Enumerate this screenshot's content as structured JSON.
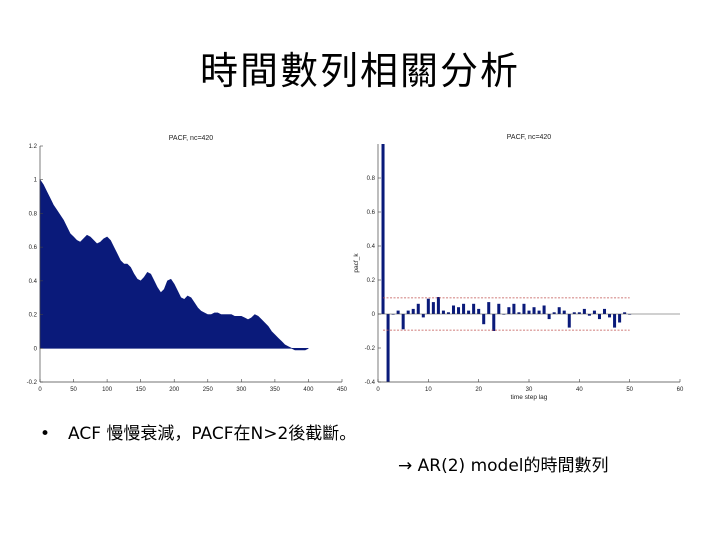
{
  "slide": {
    "title": "時間數列相關分析",
    "bullet_marker": "•",
    "bullet_text": "ACF 慢慢衰減，PACF在N>2後截斷。",
    "conclusion": "→ AR(2) model的時間數列"
  },
  "colors": {
    "fill": "#0a1a7a",
    "band": "#c0504d",
    "axis": "#444444"
  },
  "chart_data": [
    {
      "type": "area",
      "title": "PACF, nc=420",
      "xlim": [
        0,
        450
      ],
      "ylim": [
        -0.2,
        1.2
      ],
      "xticks": [
        0,
        50,
        100,
        150,
        200,
        250,
        300,
        350,
        400,
        450
      ],
      "yticks": [
        -0.2,
        0,
        0.2,
        0.4,
        0.6,
        0.8,
        1,
        1.2
      ],
      "x": [
        0,
        5,
        10,
        15,
        20,
        25,
        30,
        35,
        40,
        45,
        50,
        55,
        60,
        65,
        70,
        75,
        80,
        85,
        90,
        95,
        100,
        105,
        110,
        115,
        120,
        125,
        130,
        135,
        140,
        145,
        150,
        155,
        160,
        165,
        170,
        175,
        180,
        185,
        190,
        195,
        200,
        205,
        210,
        215,
        220,
        225,
        230,
        235,
        240,
        245,
        250,
        255,
        260,
        265,
        270,
        275,
        280,
        285,
        290,
        295,
        300,
        305,
        310,
        315,
        320,
        325,
        330,
        335,
        340,
        345,
        350,
        355,
        360,
        365,
        370,
        375,
        380,
        385,
        390,
        395,
        400
      ],
      "y": [
        1.0,
        0.97,
        0.93,
        0.89,
        0.85,
        0.82,
        0.79,
        0.76,
        0.72,
        0.68,
        0.66,
        0.64,
        0.63,
        0.65,
        0.67,
        0.66,
        0.64,
        0.62,
        0.63,
        0.65,
        0.66,
        0.64,
        0.6,
        0.56,
        0.52,
        0.5,
        0.5,
        0.48,
        0.44,
        0.41,
        0.4,
        0.42,
        0.45,
        0.44,
        0.4,
        0.36,
        0.33,
        0.35,
        0.4,
        0.41,
        0.38,
        0.34,
        0.3,
        0.29,
        0.31,
        0.3,
        0.27,
        0.24,
        0.22,
        0.21,
        0.2,
        0.2,
        0.21,
        0.21,
        0.2,
        0.2,
        0.2,
        0.2,
        0.19,
        0.19,
        0.19,
        0.18,
        0.17,
        0.18,
        0.2,
        0.19,
        0.17,
        0.15,
        0.13,
        0.1,
        0.08,
        0.06,
        0.04,
        0.02,
        0.01,
        0.0,
        -0.01,
        -0.01,
        -0.01,
        -0.01,
        0.0
      ]
    },
    {
      "type": "bar",
      "title": "PACF, nc=420",
      "xlabel": "time step lag",
      "ylabel": "pacf_k",
      "xlim": [
        0,
        60
      ],
      "ylim": [
        -0.4,
        1.0
      ],
      "xticks": [
        0,
        10,
        20,
        30,
        40,
        50,
        60
      ],
      "yticks": [
        -0.4,
        -0.2,
        0,
        0.2,
        0.4,
        0.6,
        0.8
      ],
      "confidence_band": [
        -0.095,
        0.095
      ],
      "x": [
        1,
        2,
        3,
        4,
        5,
        6,
        7,
        8,
        9,
        10,
        11,
        12,
        13,
        14,
        15,
        16,
        17,
        18,
        19,
        20,
        21,
        22,
        23,
        24,
        25,
        26,
        27,
        28,
        29,
        30,
        31,
        32,
        33,
        34,
        35,
        36,
        37,
        38,
        39,
        40,
        41,
        42,
        43,
        44,
        45,
        46,
        47,
        48,
        49,
        50
      ],
      "values": [
        1.0,
        -0.42,
        0.0,
        0.02,
        -0.09,
        0.02,
        0.03,
        0.06,
        -0.02,
        0.09,
        0.07,
        0.1,
        0.02,
        0.01,
        0.05,
        0.04,
        0.06,
        0.02,
        0.06,
        0.03,
        -0.06,
        0.07,
        -0.1,
        0.06,
        0.0,
        0.04,
        0.06,
        0.01,
        0.06,
        0.02,
        0.04,
        0.02,
        0.05,
        -0.03,
        0.01,
        0.04,
        0.02,
        -0.08,
        0.01,
        0.01,
        0.03,
        -0.01,
        0.02,
        -0.03,
        0.03,
        -0.02,
        -0.08,
        -0.05,
        0.01,
        0.0
      ]
    }
  ]
}
